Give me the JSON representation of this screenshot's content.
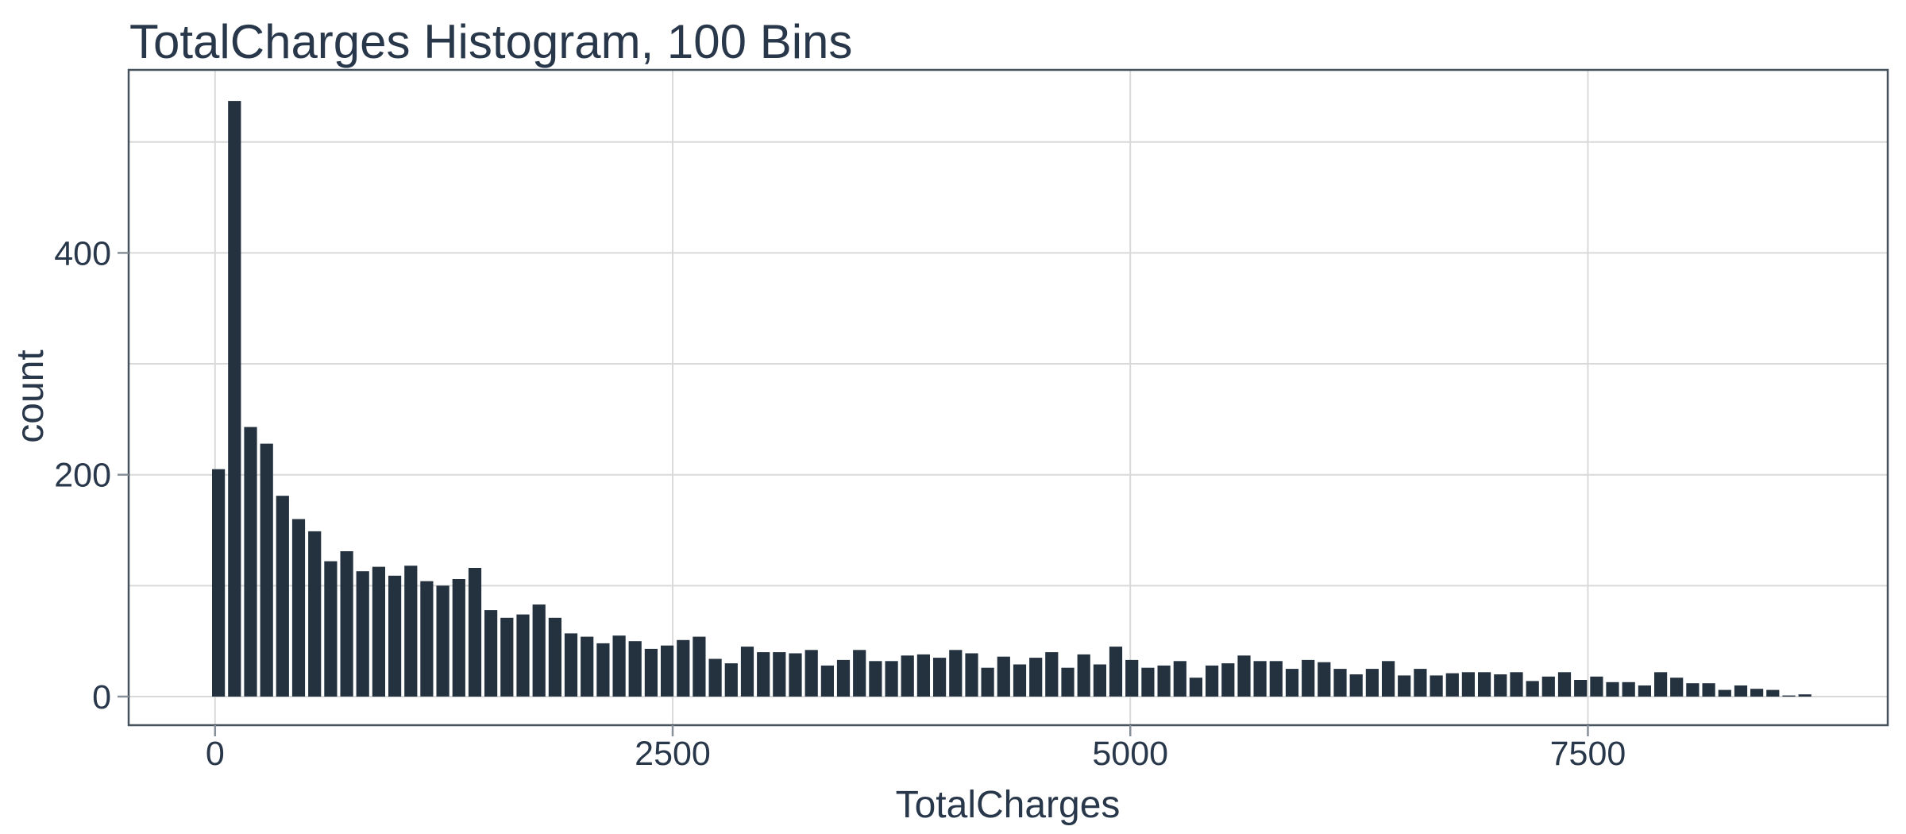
{
  "colors": {
    "bar_fill": "#243240",
    "text": "#29374a",
    "gridline": "#d9d9d9",
    "panel_border": "#46515e",
    "tick_mark": "#878f99",
    "background": "#ffffff"
  },
  "chart_data": {
    "type": "bar",
    "subtype": "histogram",
    "title": "TotalCharges Histogram, 100 Bins",
    "xlabel": "TotalCharges",
    "ylabel": "count",
    "bins": 100,
    "bin_start": -24.97,
    "bin_width": 87.54,
    "counts": [
      205,
      537,
      243,
      228,
      181,
      160,
      149,
      122,
      131,
      113,
      117,
      109,
      118,
      104,
      100,
      106,
      116,
      78,
      71,
      74,
      83,
      71,
      57,
      54,
      48,
      55,
      50,
      43,
      46,
      51,
      54,
      34,
      30,
      45,
      40,
      40,
      39,
      42,
      28,
      33,
      42,
      32,
      32,
      37,
      38,
      35,
      42,
      39,
      26,
      36,
      29,
      35,
      40,
      26,
      38,
      29,
      45,
      33,
      26,
      28,
      32,
      17,
      28,
      30,
      37,
      32,
      32,
      25,
      33,
      31,
      25,
      20,
      25,
      32,
      19,
      25,
      19,
      21,
      22,
      22,
      20,
      22,
      14,
      18,
      22,
      15,
      18,
      13,
      13,
      10,
      22,
      17,
      12,
      12,
      6,
      10,
      7,
      6,
      1,
      2
    ],
    "x_tick_values": [
      0,
      2500,
      5000,
      7500
    ],
    "x_tick_labels": [
      "0",
      "2500",
      "5000",
      "7500"
    ],
    "y_tick_values": [
      0,
      200,
      400
    ],
    "y_tick_labels": [
      "0",
      "200",
      "400"
    ],
    "x_gridline_values": [
      0,
      2500,
      5000,
      7500
    ],
    "y_gridline_values": [
      0,
      100,
      200,
      300,
      400,
      500
    ],
    "x_range": [
      -472,
      9138
    ],
    "y_range": [
      -25.8,
      565
    ],
    "grid": true,
    "legend": false
  }
}
